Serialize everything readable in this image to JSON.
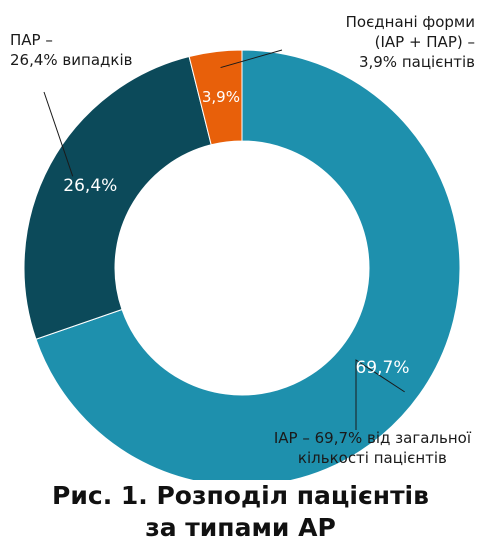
{
  "chart_data": {
    "type": "pie",
    "donut": true,
    "slices": [
      {
        "label": "ІАР – 69,7% від загальної\nкількості пацієнтів",
        "value": 69.7,
        "data_label": "69,7%",
        "color": "#1e90ad"
      },
      {
        "label": "ПАР –\n26,4% випадків",
        "value": 26.4,
        "data_label": "26,4%",
        "color": "#0c4a5a"
      },
      {
        "label": "Поєднані форми\n(ІАР + ПАР) –\n3,9% пацієнтів",
        "value": 3.9,
        "data_label": "3,9%",
        "color": "#e8600a"
      }
    ],
    "caption": "Рис. 1. Розподіл пацієнтів\nза типами АР"
  }
}
